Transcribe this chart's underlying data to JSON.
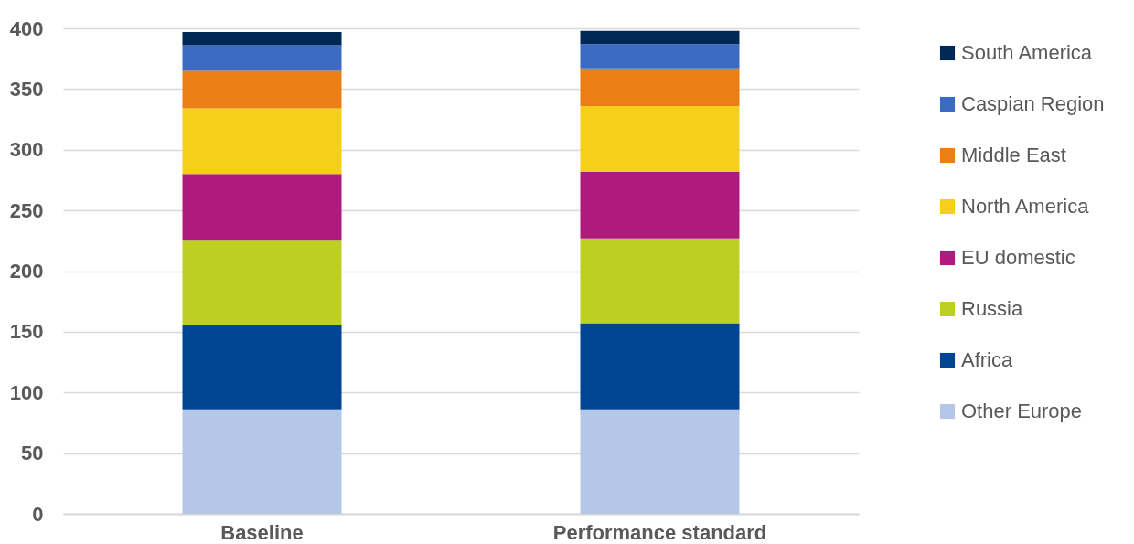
{
  "chart_data": {
    "type": "bar",
    "stacked": true,
    "categories": [
      "Baseline",
      "Performance standard"
    ],
    "series": [
      {
        "name": "Other Europe",
        "color": "#b4c7e7",
        "values": [
          86,
          86
        ]
      },
      {
        "name": "Africa",
        "color": "#024594",
        "values": [
          70,
          71
        ]
      },
      {
        "name": "Russia",
        "color": "#bdcf23",
        "values": [
          69,
          70
        ]
      },
      {
        "name": "EU domestic",
        "color": "#af1a7e",
        "values": [
          55,
          55
        ]
      },
      {
        "name": "North America",
        "color": "#f5cf1a",
        "values": [
          54,
          54
        ]
      },
      {
        "name": "Middle East",
        "color": "#eb7e14",
        "values": [
          31,
          31
        ]
      },
      {
        "name": "Caspian Region",
        "color": "#3b6bc2",
        "values": [
          21,
          20
        ]
      },
      {
        "name": "South America",
        "color": "#002856",
        "values": [
          11,
          11
        ]
      }
    ],
    "ylim": [
      0,
      400
    ],
    "yticks": [
      0,
      50,
      100,
      150,
      200,
      250,
      300,
      350,
      400
    ],
    "grid": "y",
    "legend": "right"
  }
}
